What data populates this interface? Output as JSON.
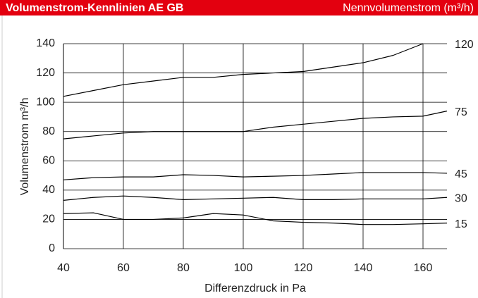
{
  "chart_data": {
    "type": "line",
    "title": "Volumenstrom-Kennlinien AE GB",
    "subtitle": "Nennvolumenstrom (m³/h)",
    "xlabel": "Differenzdruck in Pa",
    "ylabel": "Volumenstrom m³/h",
    "x": [
      40,
      50,
      60,
      70,
      80,
      90,
      100,
      110,
      120,
      130,
      140,
      150,
      160,
      168
    ],
    "series": [
      {
        "name": "120",
        "color": "#000000",
        "values": [
          104,
          108,
          112,
          114.5,
          117,
          117,
          119,
          120,
          121,
          124,
          127,
          132,
          140,
          null
        ]
      },
      {
        "name": "75",
        "color": "#000000",
        "values": [
          75,
          77,
          79,
          80,
          80,
          80,
          80,
          83,
          85,
          87,
          89,
          90,
          90.5,
          94
        ]
      },
      {
        "name": "45",
        "color": "#000000",
        "values": [
          47,
          48.5,
          49,
          49,
          50.5,
          50,
          49,
          49.5,
          50,
          51,
          52,
          52,
          52,
          51.5
        ]
      },
      {
        "name": "30",
        "color": "#000000",
        "values": [
          33,
          35,
          36,
          35,
          33.5,
          34,
          34.5,
          35,
          33.5,
          33.5,
          34,
          34,
          34,
          35
        ]
      },
      {
        "name": "15",
        "color": "#000000",
        "values": [
          24,
          24.5,
          20,
          20,
          21,
          24,
          23,
          19,
          18,
          17.5,
          16.5,
          16.5,
          17,
          17.5
        ]
      }
    ],
    "xlim": [
      40,
      168
    ],
    "ylim": [
      0,
      140
    ],
    "xticks": [
      40,
      60,
      80,
      100,
      120,
      140,
      160
    ],
    "yticks": [
      0,
      20,
      40,
      60,
      80,
      100,
      120,
      140
    ],
    "grid": true,
    "header_color": "#e3000f"
  }
}
